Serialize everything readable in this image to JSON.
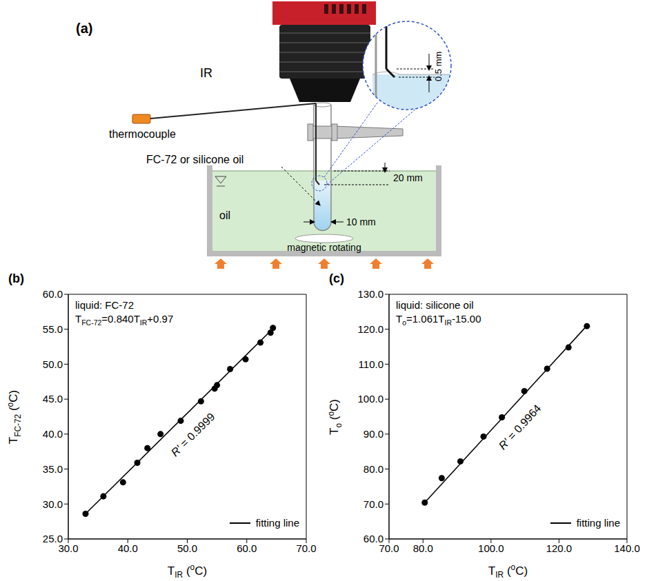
{
  "diagram": {
    "label": "(a)",
    "texts": {
      "camera": "IR",
      "probe": "thermocouple",
      "sample": "FC-72 or silicone oil",
      "bath": "oil",
      "stirrer": "magnetic rotating",
      "gap": "0.5 mm",
      "depth": "20 mm",
      "diameter": "10 mm"
    }
  },
  "chart_data": [
    {
      "type": "scatter",
      "panel": "(b)",
      "annotation": "liquid: FC-72",
      "equation": [
        {
          "text": "T"
        },
        {
          "text": "FC-72",
          "sub": true
        },
        {
          "text": "=0.840T"
        },
        {
          "text": "IR",
          "sub": true
        },
        {
          "text": "+0.97"
        }
      ],
      "r_label": "R′ = 0.9999",
      "x_label": [
        {
          "text": "T"
        },
        {
          "text": "IR",
          "sub": true
        },
        {
          "text": " ("
        },
        {
          "text": "o",
          "sup": true
        },
        {
          "text": "C)"
        }
      ],
      "y_label": [
        {
          "text": "T"
        },
        {
          "text": "FC-72",
          "sub": true
        },
        {
          "text": " ("
        },
        {
          "text": "o",
          "sup": true
        },
        {
          "text": "C)"
        }
      ],
      "series": [
        {
          "type": "scatter",
          "color": "#000000",
          "marker": "circle",
          "x": [
            32.9,
            35.9,
            39.2,
            41.6,
            43.3,
            45.5,
            48.9,
            52.3,
            54.6,
            55.0,
            57.2,
            59.8,
            62.3,
            64.0,
            64.4
          ],
          "values": [
            28.6,
            31.1,
            33.1,
            35.9,
            38.0,
            40.0,
            41.9,
            44.7,
            46.5,
            47.0,
            49.3,
            50.7,
            53.1,
            54.5,
            55.2
          ]
        },
        {
          "name": "fitting line",
          "type": "line",
          "color": "#000000",
          "line_style": "solid",
          "x": [
            32.9,
            64.4
          ],
          "values": [
            28.6,
            55.1
          ]
        }
      ],
      "legend": "lower right",
      "grid": false,
      "xlim": [
        30,
        70
      ],
      "xticks": [
        {
          "value": 30,
          "label": "30.0"
        },
        {
          "value": 40,
          "label": "40.0"
        },
        {
          "value": 50,
          "label": "50.0"
        },
        {
          "value": 60,
          "label": "60.0"
        },
        {
          "value": 70,
          "label": "70.0"
        }
      ],
      "ylim": [
        25,
        60
      ],
      "yticks": [
        {
          "value": 25,
          "label": "25.0"
        },
        {
          "value": 30,
          "label": "30.0"
        },
        {
          "value": 35,
          "label": "35.0"
        },
        {
          "value": 40,
          "label": "40.0"
        },
        {
          "value": 45,
          "label": "45.0"
        },
        {
          "value": 50,
          "label": "50.0"
        },
        {
          "value": 55,
          "label": "55.0"
        },
        {
          "value": 60,
          "label": "60.0"
        }
      ]
    },
    {
      "type": "scatter",
      "panel": "(c)",
      "annotation": "liquid: silicone oil",
      "equation": [
        {
          "text": "T"
        },
        {
          "text": "o",
          "sub": true
        },
        {
          "text": "=1.061T"
        },
        {
          "text": "IR",
          "sub": true
        },
        {
          "text": "-15.00"
        }
      ],
      "r_label": "R′ = 0.9964",
      "x_label": [
        {
          "text": "T"
        },
        {
          "text": "IR",
          "sub": true
        },
        {
          "text": " ("
        },
        {
          "text": "o",
          "sup": true
        },
        {
          "text": "C)"
        }
      ],
      "y_label": [
        {
          "text": "T"
        },
        {
          "text": "o",
          "sub": true
        },
        {
          "text": " ("
        },
        {
          "text": "o",
          "sup": true
        },
        {
          "text": "C)"
        }
      ],
      "series": [
        {
          "type": "scatter",
          "color": "#000000",
          "marker": "circle",
          "x": [
            80.5,
            85.5,
            91.0,
            97.8,
            103.2,
            109.8,
            116.5,
            122.8,
            128.2
          ],
          "values": [
            70.4,
            77.4,
            82.2,
            89.3,
            94.8,
            102.3,
            108.7,
            114.8,
            120.9
          ]
        },
        {
          "name": "fitting line",
          "type": "line",
          "color": "#000000",
          "line_style": "solid",
          "x": [
            80.5,
            128.2
          ],
          "values": [
            70.4,
            121.0
          ]
        }
      ],
      "legend": "lower right",
      "grid": false,
      "xlim": [
        70,
        140
      ],
      "xticks": [
        {
          "value": 70,
          "label": "70.0"
        },
        {
          "value": 80,
          "label": "80.0"
        },
        {
          "value": 100,
          "label": "100.0"
        },
        {
          "value": 120,
          "label": "120.0"
        },
        {
          "value": 140,
          "label": "140.0"
        }
      ],
      "ylim": [
        60,
        130
      ],
      "yticks": [
        {
          "value": 60,
          "label": "60.0"
        },
        {
          "value": 70,
          "label": "70.0"
        },
        {
          "value": 80,
          "label": "80.0"
        },
        {
          "value": 90,
          "label": "90.0"
        },
        {
          "value": 100,
          "label": "100.0"
        },
        {
          "value": 110,
          "label": "110.0"
        },
        {
          "value": 120,
          "label": "120.0"
        },
        {
          "value": 130,
          "label": "130.0"
        }
      ]
    }
  ]
}
